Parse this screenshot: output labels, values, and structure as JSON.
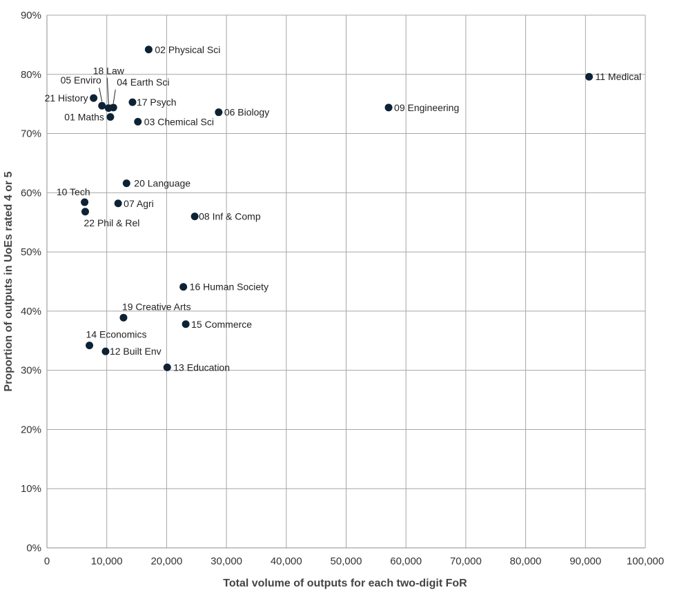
{
  "chart_data": {
    "type": "scatter",
    "xlabel": "Total volume of outputs for each two-digit FoR",
    "ylabel": "Proportion of outputs in UoEs rated 4 or 5",
    "xlim": [
      0,
      100000
    ],
    "ylim": [
      0,
      90
    ],
    "x_ticks": [
      0,
      10000,
      20000,
      30000,
      40000,
      50000,
      60000,
      70000,
      80000,
      90000,
      100000
    ],
    "x_tick_labels": [
      "0",
      "10,000",
      "20,000",
      "30,000",
      "40,000",
      "50,000",
      "60,000",
      "70,000",
      "80,000",
      "90,000",
      "100,000"
    ],
    "y_ticks": [
      0,
      10,
      20,
      30,
      40,
      50,
      60,
      70,
      80,
      90
    ],
    "y_tick_labels": [
      "0%",
      "10%",
      "20%",
      "30%",
      "40%",
      "50%",
      "60%",
      "70%",
      "80%",
      "90%"
    ],
    "grid": true,
    "marker_color": "#0d2235",
    "points": [
      {
        "label": "02 Physical Sci",
        "x": 17000,
        "y": 84.2
      },
      {
        "label": "11 Medical",
        "x": 90600,
        "y": 79.6
      },
      {
        "label": "18 Law",
        "x": 10300,
        "y": 74.3
      },
      {
        "label": "05 Enviro",
        "x": 9200,
        "y": 74.7
      },
      {
        "label": "04 Earth Sci",
        "x": 11100,
        "y": 74.4
      },
      {
        "label": "21 History",
        "x": 7800,
        "y": 76.0
      },
      {
        "label": "17 Psych",
        "x": 14300,
        "y": 75.3
      },
      {
        "label": "01 Maths",
        "x": 10600,
        "y": 72.8
      },
      {
        "label": "03 Chemical Sci",
        "x": 15200,
        "y": 72.0
      },
      {
        "label": "06 Biology",
        "x": 28700,
        "y": 73.6
      },
      {
        "label": "09 Engineering",
        "x": 57100,
        "y": 74.4
      },
      {
        "label": "20 Language",
        "x": 13300,
        "y": 61.6
      },
      {
        "label": "10 Tech",
        "x": 6300,
        "y": 58.4
      },
      {
        "label": "07 Agri",
        "x": 11900,
        "y": 58.2
      },
      {
        "label": "22 Phil & Rel",
        "x": 6400,
        "y": 56.8
      },
      {
        "label": "08 Inf & Comp",
        "x": 24700,
        "y": 56.0
      },
      {
        "label": "16 Human Society",
        "x": 22800,
        "y": 44.1
      },
      {
        "label": "19 Creative Arts",
        "x": 12800,
        "y": 38.9
      },
      {
        "label": "15 Commerce",
        "x": 23200,
        "y": 37.8
      },
      {
        "label": "14 Economics",
        "x": 7100,
        "y": 34.2
      },
      {
        "label": "12 Built Env",
        "x": 9800,
        "y": 33.2
      },
      {
        "label": "13 Education",
        "x": 20100,
        "y": 30.5
      }
    ]
  }
}
